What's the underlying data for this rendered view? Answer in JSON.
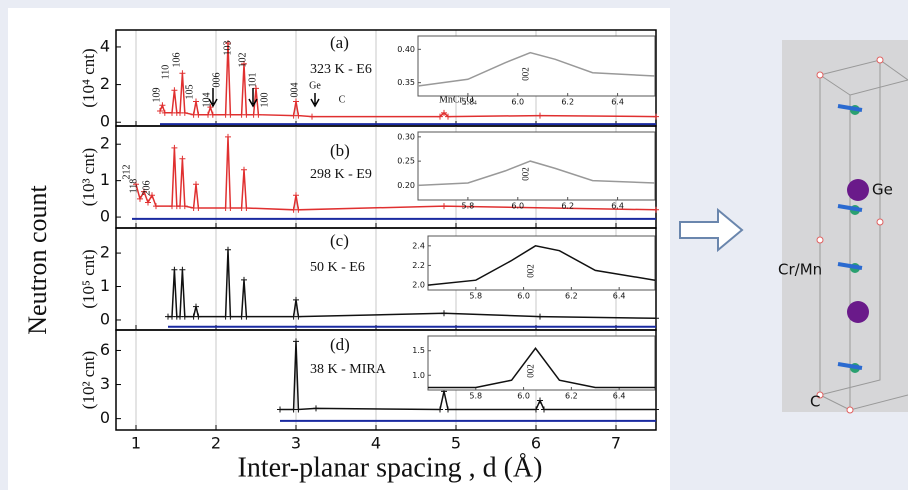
{
  "figure": {
    "y_label": "Neutron count",
    "x_label": "Inter-planar spacing , d (Å)",
    "structure_labels": [
      "Ge",
      "Cr/Mn",
      "C"
    ]
  },
  "chart_data": [
    {
      "type": "line",
      "panel_label": "(a)",
      "subtitle": "323 K - E6",
      "y_label": "(10⁴ cnt)",
      "xlim": [
        0.75,
        7.5
      ],
      "xticks": [
        1,
        2,
        3,
        4,
        5,
        6,
        7
      ],
      "ylim": [
        -0.2,
        4.9
      ],
      "yticks": [
        0,
        2,
        4
      ],
      "grid": true,
      "peak_labels": [
        "109",
        "110",
        "106",
        "105",
        "104",
        "006",
        "103",
        "102",
        "101",
        "100",
        "004",
        "Ge",
        "C",
        "MnCr₂O₄"
      ],
      "series": [
        {
          "color": "#e03030",
          "marker": "+",
          "x": [
            1.3,
            1.33,
            1.36,
            1.45,
            1.48,
            1.51,
            1.55,
            1.58,
            1.61,
            1.72,
            1.75,
            1.78,
            1.9,
            1.93,
            1.96,
            2.12,
            2.15,
            2.18,
            2.32,
            2.35,
            2.38,
            2.47,
            2.5,
            2.53,
            2.97,
            3.0,
            3.03,
            3.2,
            4.8,
            4.85,
            4.9,
            6.05,
            7.5
          ],
          "values": [
            0.6,
            0.9,
            0.5,
            0.5,
            1.7,
            0.5,
            0.5,
            2.6,
            0.5,
            0.4,
            1.1,
            0.4,
            0.4,
            0.8,
            0.4,
            0.4,
            4.2,
            0.4,
            0.4,
            3.1,
            0.4,
            0.4,
            1.8,
            0.4,
            0.35,
            1.1,
            0.35,
            0.3,
            0.3,
            0.5,
            0.3,
            0.35,
            0.3
          ]
        },
        {
          "color": "#1a2aa0",
          "x": [
            1.3,
            7.5
          ],
          "values": [
            -0.1,
            -0.1
          ]
        }
      ],
      "inset": {
        "xlim": [
          5.6,
          6.55
        ],
        "xticks": [
          5.8,
          {
            "value": 6,
            "label": "6.0"
          },
          6.2,
          6.4
        ],
        "ylim": [
          0.33,
          0.42
        ],
        "yticks": [
          0.35,
          {
            "value": 0.4,
            "label": "0.40"
          }
        ],
        "label": "002",
        "color": "#999999",
        "x": [
          5.6,
          5.8,
          5.95,
          6.05,
          6.15,
          6.3,
          6.55
        ],
        "values": [
          0.345,
          0.355,
          0.38,
          0.395,
          0.385,
          0.365,
          0.36
        ]
      }
    },
    {
      "type": "line",
      "panel_label": "(b)",
      "subtitle": "298 K - E9",
      "y_label": "(10³ cnt)",
      "xlim": [
        0.75,
        7.5
      ],
      "xticks": [
        1,
        2,
        3,
        4,
        5,
        6,
        7
      ],
      "ylim": [
        -0.3,
        2.5
      ],
      "yticks": [
        0,
        1,
        2
      ],
      "grid": true,
      "peak_labels": [
        "212",
        "118",
        "206"
      ],
      "series": [
        {
          "color": "#e03030",
          "marker": "+",
          "x": [
            1.0,
            1.05,
            1.1,
            1.15,
            1.2,
            1.25,
            1.45,
            1.48,
            1.51,
            1.55,
            1.58,
            1.61,
            1.72,
            1.75,
            1.78,
            2.12,
            2.15,
            2.18,
            2.32,
            2.35,
            2.38,
            2.97,
            3.0,
            3.03,
            4.85,
            7.5
          ],
          "values": [
            0.9,
            0.5,
            0.7,
            0.4,
            0.6,
            0.3,
            0.3,
            1.9,
            0.3,
            0.3,
            1.6,
            0.3,
            0.25,
            0.9,
            0.25,
            0.25,
            2.2,
            0.25,
            0.25,
            1.3,
            0.25,
            0.2,
            0.6,
            0.2,
            0.3,
            0.2
          ]
        },
        {
          "color": "#1a2aa0",
          "x": [
            0.95,
            7.5
          ],
          "values": [
            -0.05,
            -0.05
          ]
        }
      ],
      "inset": {
        "xlim": [
          5.6,
          6.55
        ],
        "xticks": [
          5.8,
          {
            "value": 6,
            "label": "6.0"
          },
          6.2,
          6.4
        ],
        "ylim": [
          0.17,
          0.31
        ],
        "yticks": [
          {
            "value": 0.2,
            "label": "0.20"
          },
          0.25,
          {
            "value": 0.3,
            "label": "0.30"
          }
        ],
        "label": "002",
        "color": "#999999",
        "x": [
          5.6,
          5.8,
          5.95,
          6.05,
          6.15,
          6.3,
          6.55
        ],
        "values": [
          0.2,
          0.205,
          0.23,
          0.25,
          0.235,
          0.21,
          0.205
        ]
      }
    },
    {
      "type": "line",
      "panel_label": "(c)",
      "subtitle": "50 K - E6",
      "y_label": "(10⁵ cnt)",
      "xlim": [
        0.75,
        7.5
      ],
      "xticks": [
        1,
        2,
        3,
        4,
        5,
        6,
        7
      ],
      "ylim": [
        -0.3,
        2.75
      ],
      "yticks": [
        0,
        1,
        2
      ],
      "grid": true,
      "peak_labels": [],
      "series": [
        {
          "color": "#111111",
          "marker": "+",
          "x": [
            1.4,
            1.45,
            1.48,
            1.51,
            1.55,
            1.58,
            1.61,
            1.72,
            1.75,
            1.78,
            2.12,
            2.15,
            2.18,
            2.32,
            2.35,
            2.38,
            2.97,
            3.0,
            3.03,
            4.85,
            6.05,
            7.5
          ],
          "values": [
            0.1,
            0.1,
            1.5,
            0.1,
            0.1,
            1.5,
            0.1,
            0.1,
            0.4,
            0.1,
            0.1,
            2.1,
            0.1,
            0.1,
            1.2,
            0.1,
            0.1,
            0.6,
            0.1,
            0.2,
            0.1,
            0.05
          ]
        },
        {
          "color": "#1a2aa0",
          "x": [
            1.4,
            7.5
          ],
          "values": [
            -0.2,
            -0.2
          ]
        }
      ],
      "inset": {
        "xlim": [
          5.6,
          6.55
        ],
        "xticks": [
          5.8,
          {
            "value": 6,
            "label": "6.0"
          },
          6.2,
          6.4
        ],
        "ylim": [
          1.95,
          2.5
        ],
        "yticks": [
          {
            "value": 2,
            "label": "2.0"
          },
          2.2,
          2.4
        ],
        "label": "002",
        "color": "#111111",
        "x": [
          5.6,
          5.8,
          5.95,
          6.05,
          6.15,
          6.3,
          6.55
        ],
        "values": [
          2.0,
          2.05,
          2.25,
          2.4,
          2.35,
          2.15,
          2.05
        ]
      }
    },
    {
      "type": "line",
      "panel_label": "(d)",
      "subtitle": "38 K - MIRA",
      "y_label": "(10² cnt)",
      "xlim": [
        0.75,
        7.5
      ],
      "xticks": [
        1,
        2,
        3,
        4,
        5,
        6,
        7
      ],
      "ylim": [
        -1,
        7.8
      ],
      "yticks": [
        0,
        3,
        6
      ],
      "grid": true,
      "peak_labels": [],
      "series": [
        {
          "color": "#111111",
          "marker": "+",
          "x": [
            2.8,
            2.97,
            3.0,
            3.03,
            3.25,
            4.8,
            4.85,
            4.9,
            6.0,
            6.05,
            6.1,
            7.5
          ],
          "values": [
            0.8,
            0.8,
            6.8,
            0.8,
            0.9,
            0.8,
            2.4,
            0.8,
            0.8,
            1.6,
            0.8,
            0.8
          ]
        },
        {
          "color": "#1a2aa0",
          "x": [
            2.8,
            7.5
          ],
          "values": [
            -0.2,
            -0.2
          ]
        }
      ],
      "inset": {
        "xlim": [
          5.6,
          6.55
        ],
        "xticks": [
          5.8,
          {
            "value": 6,
            "label": "6.0"
          },
          6.2,
          6.4
        ],
        "ylim": [
          0.7,
          1.8
        ],
        "yticks": [
          {
            "value": 1,
            "label": "1.0"
          },
          1.5
        ],
        "label": "002",
        "color": "#111111",
        "x": [
          5.6,
          5.8,
          5.95,
          6.05,
          6.15,
          6.3,
          6.55
        ],
        "values": [
          0.75,
          0.75,
          0.9,
          1.55,
          0.9,
          0.75,
          0.75
        ]
      }
    }
  ]
}
